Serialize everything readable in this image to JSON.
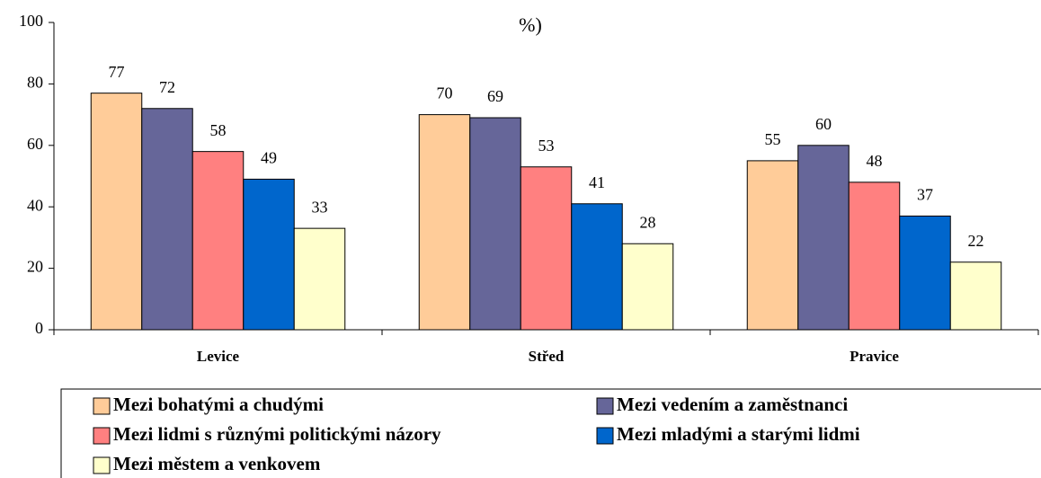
{
  "chart_data": {
    "type": "bar",
    "title": "%)",
    "categories": [
      "Levice",
      "Střed",
      "Pravice"
    ],
    "series": [
      {
        "name": "Mezi bohatými a chudými",
        "color": "#FFCC99",
        "values": [
          77,
          70,
          55
        ]
      },
      {
        "name": "Mezi vedením a zaměstnanci",
        "color": "#666699",
        "values": [
          72,
          69,
          60
        ]
      },
      {
        "name": "Mezi lidmi s různými politickými názory",
        "color": "#FF8080",
        "values": [
          58,
          53,
          48
        ]
      },
      {
        "name": "Mezi mladými a starými lidmi",
        "color": "#0066CC",
        "values": [
          49,
          41,
          37
        ]
      },
      {
        "name": "Mezi městem a venkovem",
        "color": "#FFFFCC",
        "values": [
          33,
          28,
          22
        ]
      }
    ],
    "ylim": [
      0,
      100
    ],
    "yticks": [
      0,
      20,
      40,
      60,
      80,
      100
    ],
    "grid": false,
    "legend": "bottom"
  }
}
